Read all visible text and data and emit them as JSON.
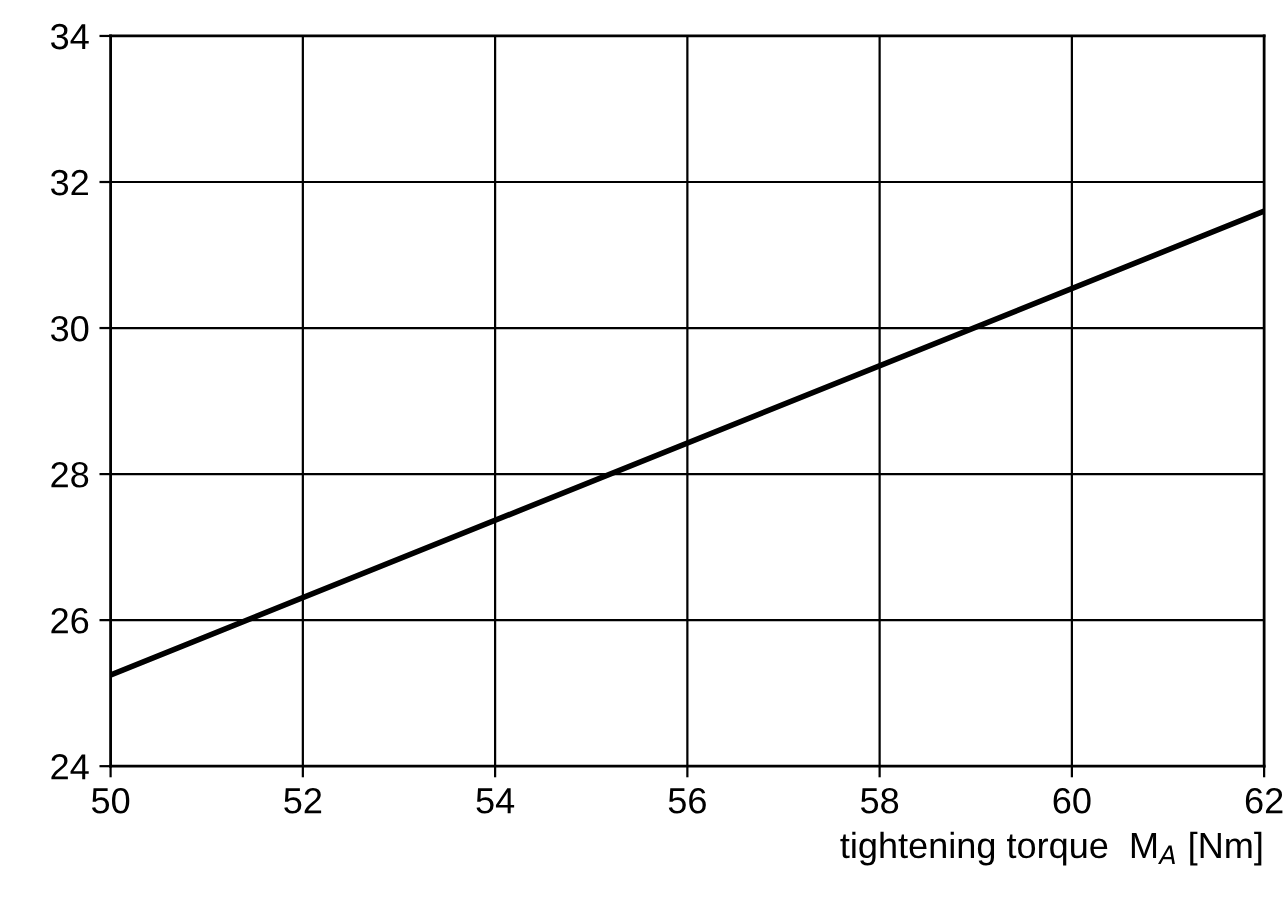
{
  "chart_data": {
    "type": "line",
    "xlabel": "tightening torque  M$_{A}$ [Nm]",
    "x": [
      50,
      62
    ],
    "series": [
      {
        "color": "#000000",
        "values": [
          25.25,
          31.6
        ]
      }
    ],
    "xlim": [
      50,
      62
    ],
    "xticks": [
      50,
      52,
      54,
      56,
      58,
      60,
      62
    ],
    "ylim": [
      24,
      34
    ],
    "yticks": [
      24,
      26,
      28,
      30,
      32,
      34
    ],
    "grid": true,
    "marker": "none",
    "line_style": "solid"
  }
}
